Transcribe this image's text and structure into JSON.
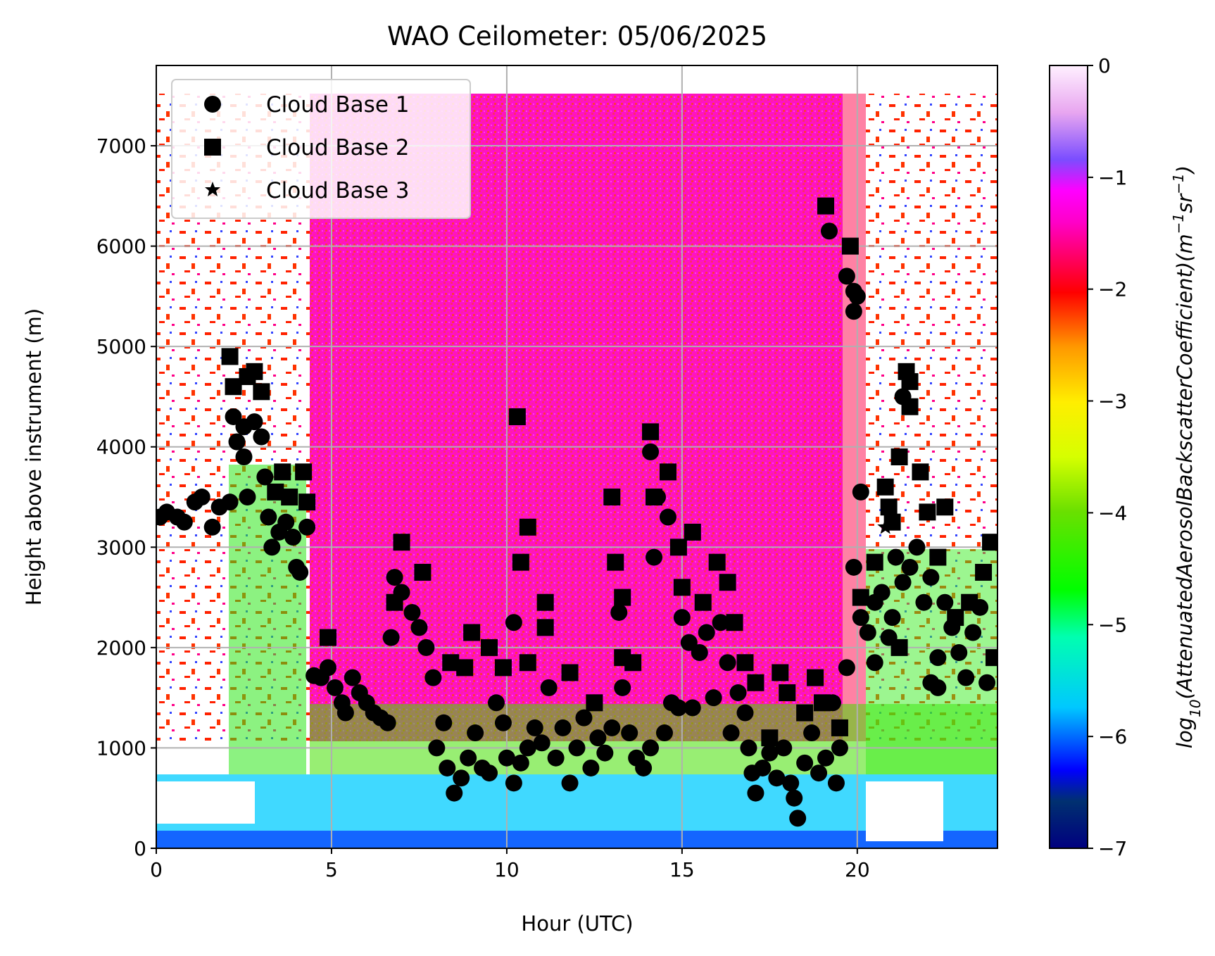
{
  "chart_data": {
    "type": "heatmap",
    "title": "WAO Ceilometer: 05/06/2025",
    "xlabel": "Hour (UTC)",
    "ylabel": "Height above instrument (m)",
    "xlim": [
      0,
      24
    ],
    "ylim": [
      0,
      7800
    ],
    "x_ticks": [
      0,
      5,
      10,
      15,
      20
    ],
    "y_ticks": [
      0,
      1000,
      2000,
      3000,
      4000,
      5000,
      6000,
      7000
    ],
    "grid": true,
    "legend_position": "top-left",
    "colorbar": {
      "label_main": "log",
      "label_sub": "10",
      "label_rest": "(AttenuatedAerosolBackscatterCoefficient)(m",
      "label_exp1": "−1",
      "label_mid": "sr",
      "label_exp2": "−1",
      "label_close": ")",
      "range": [
        -7,
        0
      ],
      "ticks": [
        0,
        -1,
        -2,
        -3,
        -4,
        -5,
        -6,
        -7
      ],
      "tick_labels": [
        "0",
        "−1",
        "−2",
        "−3",
        "−4",
        "−5",
        "−6",
        "−7"
      ],
      "colormap": "gist_ncar",
      "colormap_stops": [
        "#000080",
        "#00d1ff",
        "#00ff2a",
        "#fff500",
        "#ff0000",
        "#ff00ff",
        "#8a55ff",
        "#ffffff"
      ]
    },
    "series": [
      {
        "name": "Cloud Base 1",
        "marker": "circle",
        "points": [
          [
            0.1,
            3300
          ],
          [
            0.3,
            3350
          ],
          [
            0.6,
            3300
          ],
          [
            0.8,
            3250
          ],
          [
            1.1,
            3450
          ],
          [
            1.3,
            3500
          ],
          [
            1.6,
            3200
          ],
          [
            1.8,
            3400
          ],
          [
            2.1,
            3450
          ],
          [
            2.2,
            4300
          ],
          [
            2.3,
            4050
          ],
          [
            2.5,
            4200
          ],
          [
            2.5,
            3900
          ],
          [
            2.6,
            3500
          ],
          [
            2.8,
            4250
          ],
          [
            3.0,
            4100
          ],
          [
            3.1,
            3700
          ],
          [
            3.2,
            3300
          ],
          [
            3.3,
            3000
          ],
          [
            3.5,
            3150
          ],
          [
            3.7,
            3250
          ],
          [
            3.9,
            3100
          ],
          [
            4.0,
            2800
          ],
          [
            4.1,
            2750
          ],
          [
            4.3,
            3200
          ],
          [
            4.5,
            1720
          ],
          [
            4.7,
            1700
          ],
          [
            4.9,
            1800
          ],
          [
            5.1,
            1600
          ],
          [
            5.3,
            1450
          ],
          [
            5.4,
            1350
          ],
          [
            5.6,
            1700
          ],
          [
            5.8,
            1550
          ],
          [
            6.0,
            1450
          ],
          [
            6.2,
            1350
          ],
          [
            6.4,
            1300
          ],
          [
            6.6,
            1250
          ],
          [
            6.7,
            2100
          ],
          [
            6.8,
            2700
          ],
          [
            7.0,
            2550
          ],
          [
            7.3,
            2350
          ],
          [
            7.5,
            2200
          ],
          [
            7.7,
            2000
          ],
          [
            7.9,
            1700
          ],
          [
            8.0,
            1000
          ],
          [
            8.2,
            1250
          ],
          [
            8.3,
            800
          ],
          [
            8.5,
            550
          ],
          [
            8.7,
            700
          ],
          [
            8.9,
            900
          ],
          [
            9.1,
            1150
          ],
          [
            9.3,
            800
          ],
          [
            9.5,
            750
          ],
          [
            9.7,
            1450
          ],
          [
            9.9,
            1250
          ],
          [
            10.0,
            900
          ],
          [
            10.2,
            650
          ],
          [
            10.2,
            2250
          ],
          [
            10.4,
            850
          ],
          [
            10.6,
            1000
          ],
          [
            10.8,
            1200
          ],
          [
            11.0,
            1050
          ],
          [
            11.2,
            1600
          ],
          [
            11.4,
            900
          ],
          [
            11.6,
            1200
          ],
          [
            11.8,
            650
          ],
          [
            12.0,
            1000
          ],
          [
            12.2,
            1300
          ],
          [
            12.4,
            800
          ],
          [
            12.6,
            1100
          ],
          [
            12.8,
            950
          ],
          [
            13.0,
            1200
          ],
          [
            13.2,
            2350
          ],
          [
            13.3,
            1600
          ],
          [
            13.5,
            1150
          ],
          [
            13.7,
            900
          ],
          [
            13.9,
            800
          ],
          [
            14.1,
            1000
          ],
          [
            14.2,
            2900
          ],
          [
            14.1,
            3950
          ],
          [
            14.3,
            3500
          ],
          [
            14.5,
            1150
          ],
          [
            14.6,
            3300
          ],
          [
            14.7,
            1450
          ],
          [
            14.9,
            1400
          ],
          [
            15.0,
            2300
          ],
          [
            15.2,
            2050
          ],
          [
            15.3,
            1400
          ],
          [
            15.5,
            1950
          ],
          [
            15.7,
            2150
          ],
          [
            15.9,
            1500
          ],
          [
            16.1,
            2250
          ],
          [
            16.3,
            1850
          ],
          [
            16.4,
            1150
          ],
          [
            16.6,
            1550
          ],
          [
            16.8,
            1350
          ],
          [
            16.9,
            1000
          ],
          [
            17.0,
            750
          ],
          [
            17.1,
            550
          ],
          [
            17.3,
            800
          ],
          [
            17.5,
            950
          ],
          [
            17.7,
            700
          ],
          [
            17.9,
            1000
          ],
          [
            18.1,
            650
          ],
          [
            18.2,
            500
          ],
          [
            18.3,
            300
          ],
          [
            18.5,
            850
          ],
          [
            18.7,
            1150
          ],
          [
            18.9,
            750
          ],
          [
            19.1,
            900
          ],
          [
            19.3,
            1450
          ],
          [
            19.4,
            650
          ],
          [
            19.5,
            1000
          ],
          [
            19.7,
            1800
          ],
          [
            19.9,
            5350
          ],
          [
            19.9,
            2800
          ],
          [
            20.1,
            2300
          ],
          [
            20.1,
            3550
          ],
          [
            20.3,
            2150
          ],
          [
            20.5,
            2450
          ],
          [
            20.5,
            1850
          ],
          [
            20.7,
            2550
          ],
          [
            20.9,
            2100
          ],
          [
            21.0,
            2300
          ],
          [
            21.1,
            2900
          ],
          [
            21.3,
            2650
          ],
          [
            21.5,
            2800
          ],
          [
            21.7,
            3000
          ],
          [
            21.9,
            2450
          ],
          [
            22.1,
            2700
          ],
          [
            22.1,
            1650
          ],
          [
            22.3,
            1900
          ],
          [
            22.3,
            1600
          ],
          [
            22.5,
            2450
          ],
          [
            22.7,
            2200
          ],
          [
            22.9,
            1950
          ],
          [
            23.1,
            1700
          ],
          [
            23.3,
            2150
          ],
          [
            23.5,
            2400
          ],
          [
            23.7,
            1650
          ],
          [
            19.2,
            6150
          ],
          [
            19.7,
            5700
          ],
          [
            19.9,
            5550
          ],
          [
            20.0,
            5500
          ],
          [
            21.3,
            4500
          ]
        ]
      },
      {
        "name": "Cloud Base 2",
        "marker": "square",
        "points": [
          [
            2.1,
            4900
          ],
          [
            2.2,
            4600
          ],
          [
            2.6,
            4700
          ],
          [
            2.8,
            4750
          ],
          [
            3.0,
            4550
          ],
          [
            3.4,
            3550
          ],
          [
            3.6,
            3750
          ],
          [
            3.8,
            3500
          ],
          [
            4.2,
            3750
          ],
          [
            4.3,
            3450
          ],
          [
            4.9,
            2100
          ],
          [
            6.8,
            2450
          ],
          [
            7.0,
            3050
          ],
          [
            7.6,
            2750
          ],
          [
            8.4,
            1850
          ],
          [
            8.8,
            1800
          ],
          [
            9.0,
            2150
          ],
          [
            9.5,
            2000
          ],
          [
            9.9,
            1800
          ],
          [
            10.3,
            4300
          ],
          [
            10.4,
            2850
          ],
          [
            10.6,
            3200
          ],
          [
            10.6,
            1850
          ],
          [
            11.1,
            2450
          ],
          [
            11.1,
            2200
          ],
          [
            11.8,
            1750
          ],
          [
            12.5,
            1450
          ],
          [
            13.0,
            3500
          ],
          [
            13.1,
            2850
          ],
          [
            13.3,
            2500
          ],
          [
            13.3,
            1900
          ],
          [
            13.6,
            1850
          ],
          [
            14.1,
            4150
          ],
          [
            14.2,
            3500
          ],
          [
            14.6,
            3750
          ],
          [
            14.9,
            3000
          ],
          [
            15.0,
            2600
          ],
          [
            15.3,
            3150
          ],
          [
            15.6,
            2450
          ],
          [
            16.0,
            2850
          ],
          [
            16.3,
            2650
          ],
          [
            16.5,
            2250
          ],
          [
            16.8,
            1850
          ],
          [
            17.1,
            1650
          ],
          [
            17.5,
            1100
          ],
          [
            17.8,
            1750
          ],
          [
            18.0,
            1550
          ],
          [
            18.5,
            1350
          ],
          [
            18.8,
            1700
          ],
          [
            19.0,
            1450
          ],
          [
            19.1,
            6400
          ],
          [
            19.5,
            1200
          ],
          [
            19.8,
            6000
          ],
          [
            20.1,
            2500
          ],
          [
            20.5,
            2850
          ],
          [
            20.8,
            3600
          ],
          [
            20.9,
            3400
          ],
          [
            21.2,
            2000
          ],
          [
            21.4,
            4750
          ],
          [
            21.5,
            4650
          ],
          [
            21.5,
            4400
          ],
          [
            21.8,
            3750
          ],
          [
            22.0,
            3350
          ],
          [
            22.3,
            2900
          ],
          [
            22.5,
            3400
          ],
          [
            22.8,
            2300
          ],
          [
            23.2,
            2450
          ],
          [
            23.6,
            2750
          ],
          [
            23.8,
            3050
          ],
          [
            23.9,
            1900
          ],
          [
            21.2,
            3900
          ],
          [
            21.0,
            3250
          ]
        ]
      },
      {
        "name": "Cloud Base 3",
        "marker": "star",
        "points": [
          [
            20.8,
            3200
          ]
        ]
      }
    ]
  },
  "colors": {
    "marker": "#000000",
    "grid": "#b0b0b0",
    "legend_frame": "#cccccc",
    "no_data": "#ffffff"
  }
}
